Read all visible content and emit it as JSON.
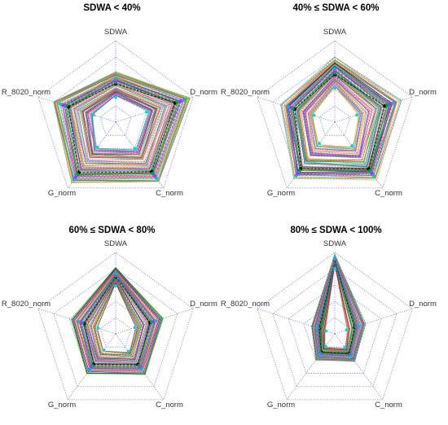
{
  "figure": {
    "panel_count": 4
  },
  "chart_data": [
    {
      "type": "radar",
      "title": "SDWA < 40%",
      "axes": [
        "SDWA",
        "D_norm",
        "C_norm",
        "G_norm",
        "R_8020_norm"
      ],
      "rlim": [
        0,
        1
      ],
      "grid_levels": [
        0.2,
        0.4,
        0.6,
        0.8,
        1.0
      ],
      "grid_style": "dotted",
      "grid_color": "#7b7bd6",
      "bundle": {
        "inner": [
          0.32,
          0.42,
          0.42,
          0.4,
          0.3
        ],
        "outer": [
          0.62,
          0.96,
          0.9,
          0.92,
          0.8
        ],
        "typical": [
          0.5,
          0.82,
          0.8,
          0.82,
          0.66
        ]
      },
      "series_palette": [
        "#ff00ff",
        "#00c000",
        "#000000",
        "#00bcd4",
        "#ff9800",
        "#1e88e5",
        "#e91e63",
        "#8bc34a",
        "#9c27b0",
        "#ffeb3b",
        "#ff5722",
        "#3f51b5"
      ]
    },
    {
      "type": "radar",
      "title": "40% ≤ SDWA < 60%",
      "axes": [
        "SDWA",
        "D_norm",
        "C_norm",
        "G_norm",
        "R_8020_norm"
      ],
      "rlim": [
        0,
        1
      ],
      "grid_levels": [
        0.2,
        0.4,
        0.6,
        0.8,
        1.0
      ],
      "grid_style": "dotted",
      "grid_color": "#7b7bd6",
      "bundle": {
        "inner": [
          0.44,
          0.3,
          0.38,
          0.34,
          0.28
        ],
        "outer": [
          0.8,
          0.86,
          0.88,
          0.86,
          0.7
        ],
        "typical": [
          0.62,
          0.7,
          0.76,
          0.76,
          0.56
        ]
      },
      "series_palette": [
        "#ff00ff",
        "#00c000",
        "#000000",
        "#00bcd4",
        "#ff9800",
        "#1e88e5",
        "#e91e63",
        "#8bc34a",
        "#9c27b0",
        "#ffeb3b",
        "#ff5722",
        "#3f51b5"
      ]
    },
    {
      "type": "radar",
      "title": "60% ≤ SDWA < 80%",
      "axes": [
        "SDWA",
        "D_norm",
        "C_norm",
        "G_norm",
        "R_8020_norm"
      ],
      "rlim": [
        0,
        1
      ],
      "grid_levels": [
        0.2,
        0.4,
        0.6,
        0.8,
        1.0
      ],
      "grid_style": "dotted",
      "grid_color": "#7b7bd6",
      "bundle": {
        "inner": [
          0.62,
          0.26,
          0.28,
          0.26,
          0.24
        ],
        "outer": [
          0.82,
          0.62,
          0.62,
          0.62,
          0.58
        ],
        "typical": [
          0.72,
          0.48,
          0.5,
          0.5,
          0.44
        ]
      },
      "series_palette": [
        "#ff00ff",
        "#00c000",
        "#000000",
        "#00bcd4",
        "#ff9800",
        "#1e88e5",
        "#e91e63",
        "#8bc34a",
        "#9c27b0",
        "#ffeb3b",
        "#ff5722",
        "#3f51b5"
      ]
    },
    {
      "type": "radar",
      "title": "80% ≤ SDWA < 100%",
      "axes": [
        "SDWA",
        "D_norm",
        "C_norm",
        "G_norm",
        "R_8020_norm"
      ],
      "rlim": [
        0,
        1
      ],
      "grid_levels": [
        0.2,
        0.4,
        0.6,
        0.8,
        1.0
      ],
      "grid_style": "dotted",
      "grid_color": "#7b7bd6",
      "bundle": {
        "inner": [
          0.84,
          0.16,
          0.22,
          0.2,
          0.12
        ],
        "outer": [
          0.98,
          0.4,
          0.42,
          0.4,
          0.3
        ],
        "typical": [
          0.92,
          0.28,
          0.32,
          0.3,
          0.22
        ]
      },
      "series_palette": [
        "#ff00ff",
        "#00c000",
        "#000000",
        "#00bcd4",
        "#ff9800",
        "#1e88e5",
        "#e91e63",
        "#8bc34a",
        "#9c27b0",
        "#ffeb3b",
        "#ff5722",
        "#3f51b5"
      ]
    }
  ]
}
